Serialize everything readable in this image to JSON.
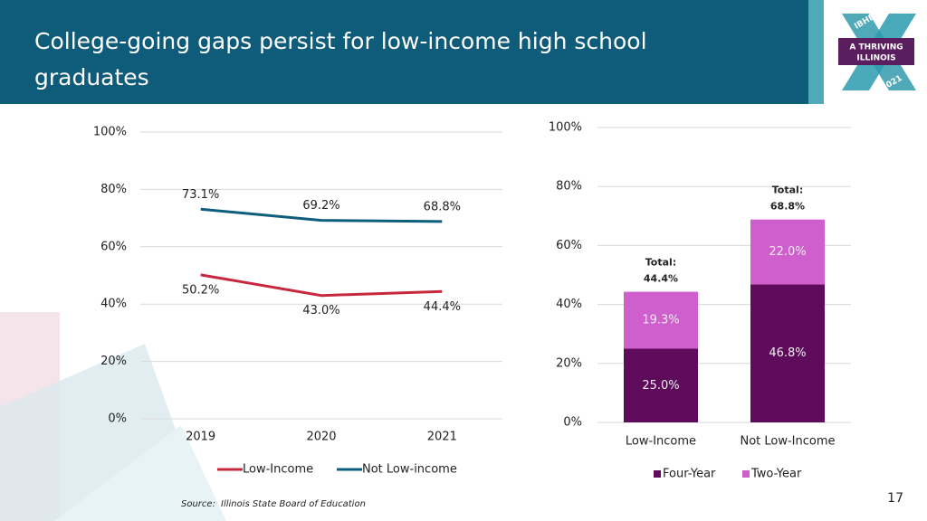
{
  "header": {
    "title": [
      "College-going gaps persist for low-income high school",
      "graduates"
    ]
  },
  "logo": {
    "lines": [
      "IBHE",
      "A THRIVING",
      "ILLINOIS",
      "2021"
    ]
  },
  "source": {
    "label": "Source:",
    "text": "Illinois State Board of Education"
  },
  "page_number": "17",
  "chart_data": [
    {
      "type": "line",
      "categories": [
        "2019",
        "2020",
        "2021"
      ],
      "series": [
        {
          "name": "Low-Income",
          "color": "#c8283e",
          "values": [
            50.2,
            43.0,
            44.4
          ],
          "value_labels": [
            "50.2%",
            "43.0%",
            "44.4%"
          ]
        },
        {
          "name": "Not Low-income",
          "color": "#0d5e7c",
          "values": [
            73.1,
            69.2,
            68.8
          ],
          "value_labels": [
            "73.1%",
            "69.2%",
            "68.8%"
          ]
        }
      ],
      "ylim": [
        0,
        100
      ],
      "yticks": [
        {
          "value": 0,
          "label": "0%"
        },
        {
          "value": 20,
          "label": "20%"
        },
        {
          "value": 40,
          "label": "40%"
        },
        {
          "value": 60,
          "label": "60%"
        },
        {
          "value": 80,
          "label": "80%"
        },
        {
          "value": 100,
          "label": "100%"
        }
      ],
      "grid": true,
      "legend": "bottom"
    },
    {
      "type": "stacked_bar",
      "categories": [
        "Low-Income",
        "Not Low-Income"
      ],
      "series": [
        {
          "name": "Four-Year",
          "color": "#5e0b5c",
          "values": [
            25.0,
            46.8
          ],
          "value_labels": [
            "25.0%",
            "46.8%"
          ]
        },
        {
          "name": "Two-Year",
          "color": "#cf5fcd",
          "values": [
            19.3,
            22.0
          ],
          "value_labels": [
            "19.3%",
            "22.0%"
          ]
        }
      ],
      "annotations": [
        [
          "Total:",
          "44.4%"
        ],
        [
          "Total:",
          "68.8%"
        ]
      ],
      "ylim": [
        0,
        100
      ],
      "yticks": [
        {
          "value": 0,
          "label": "0%"
        },
        {
          "value": 20,
          "label": "20%"
        },
        {
          "value": 40,
          "label": "40%"
        },
        {
          "value": 60,
          "label": "60%"
        },
        {
          "value": 80,
          "label": "80%"
        },
        {
          "value": 100,
          "label": "100%"
        }
      ],
      "grid": true,
      "legend": "bottom"
    }
  ]
}
